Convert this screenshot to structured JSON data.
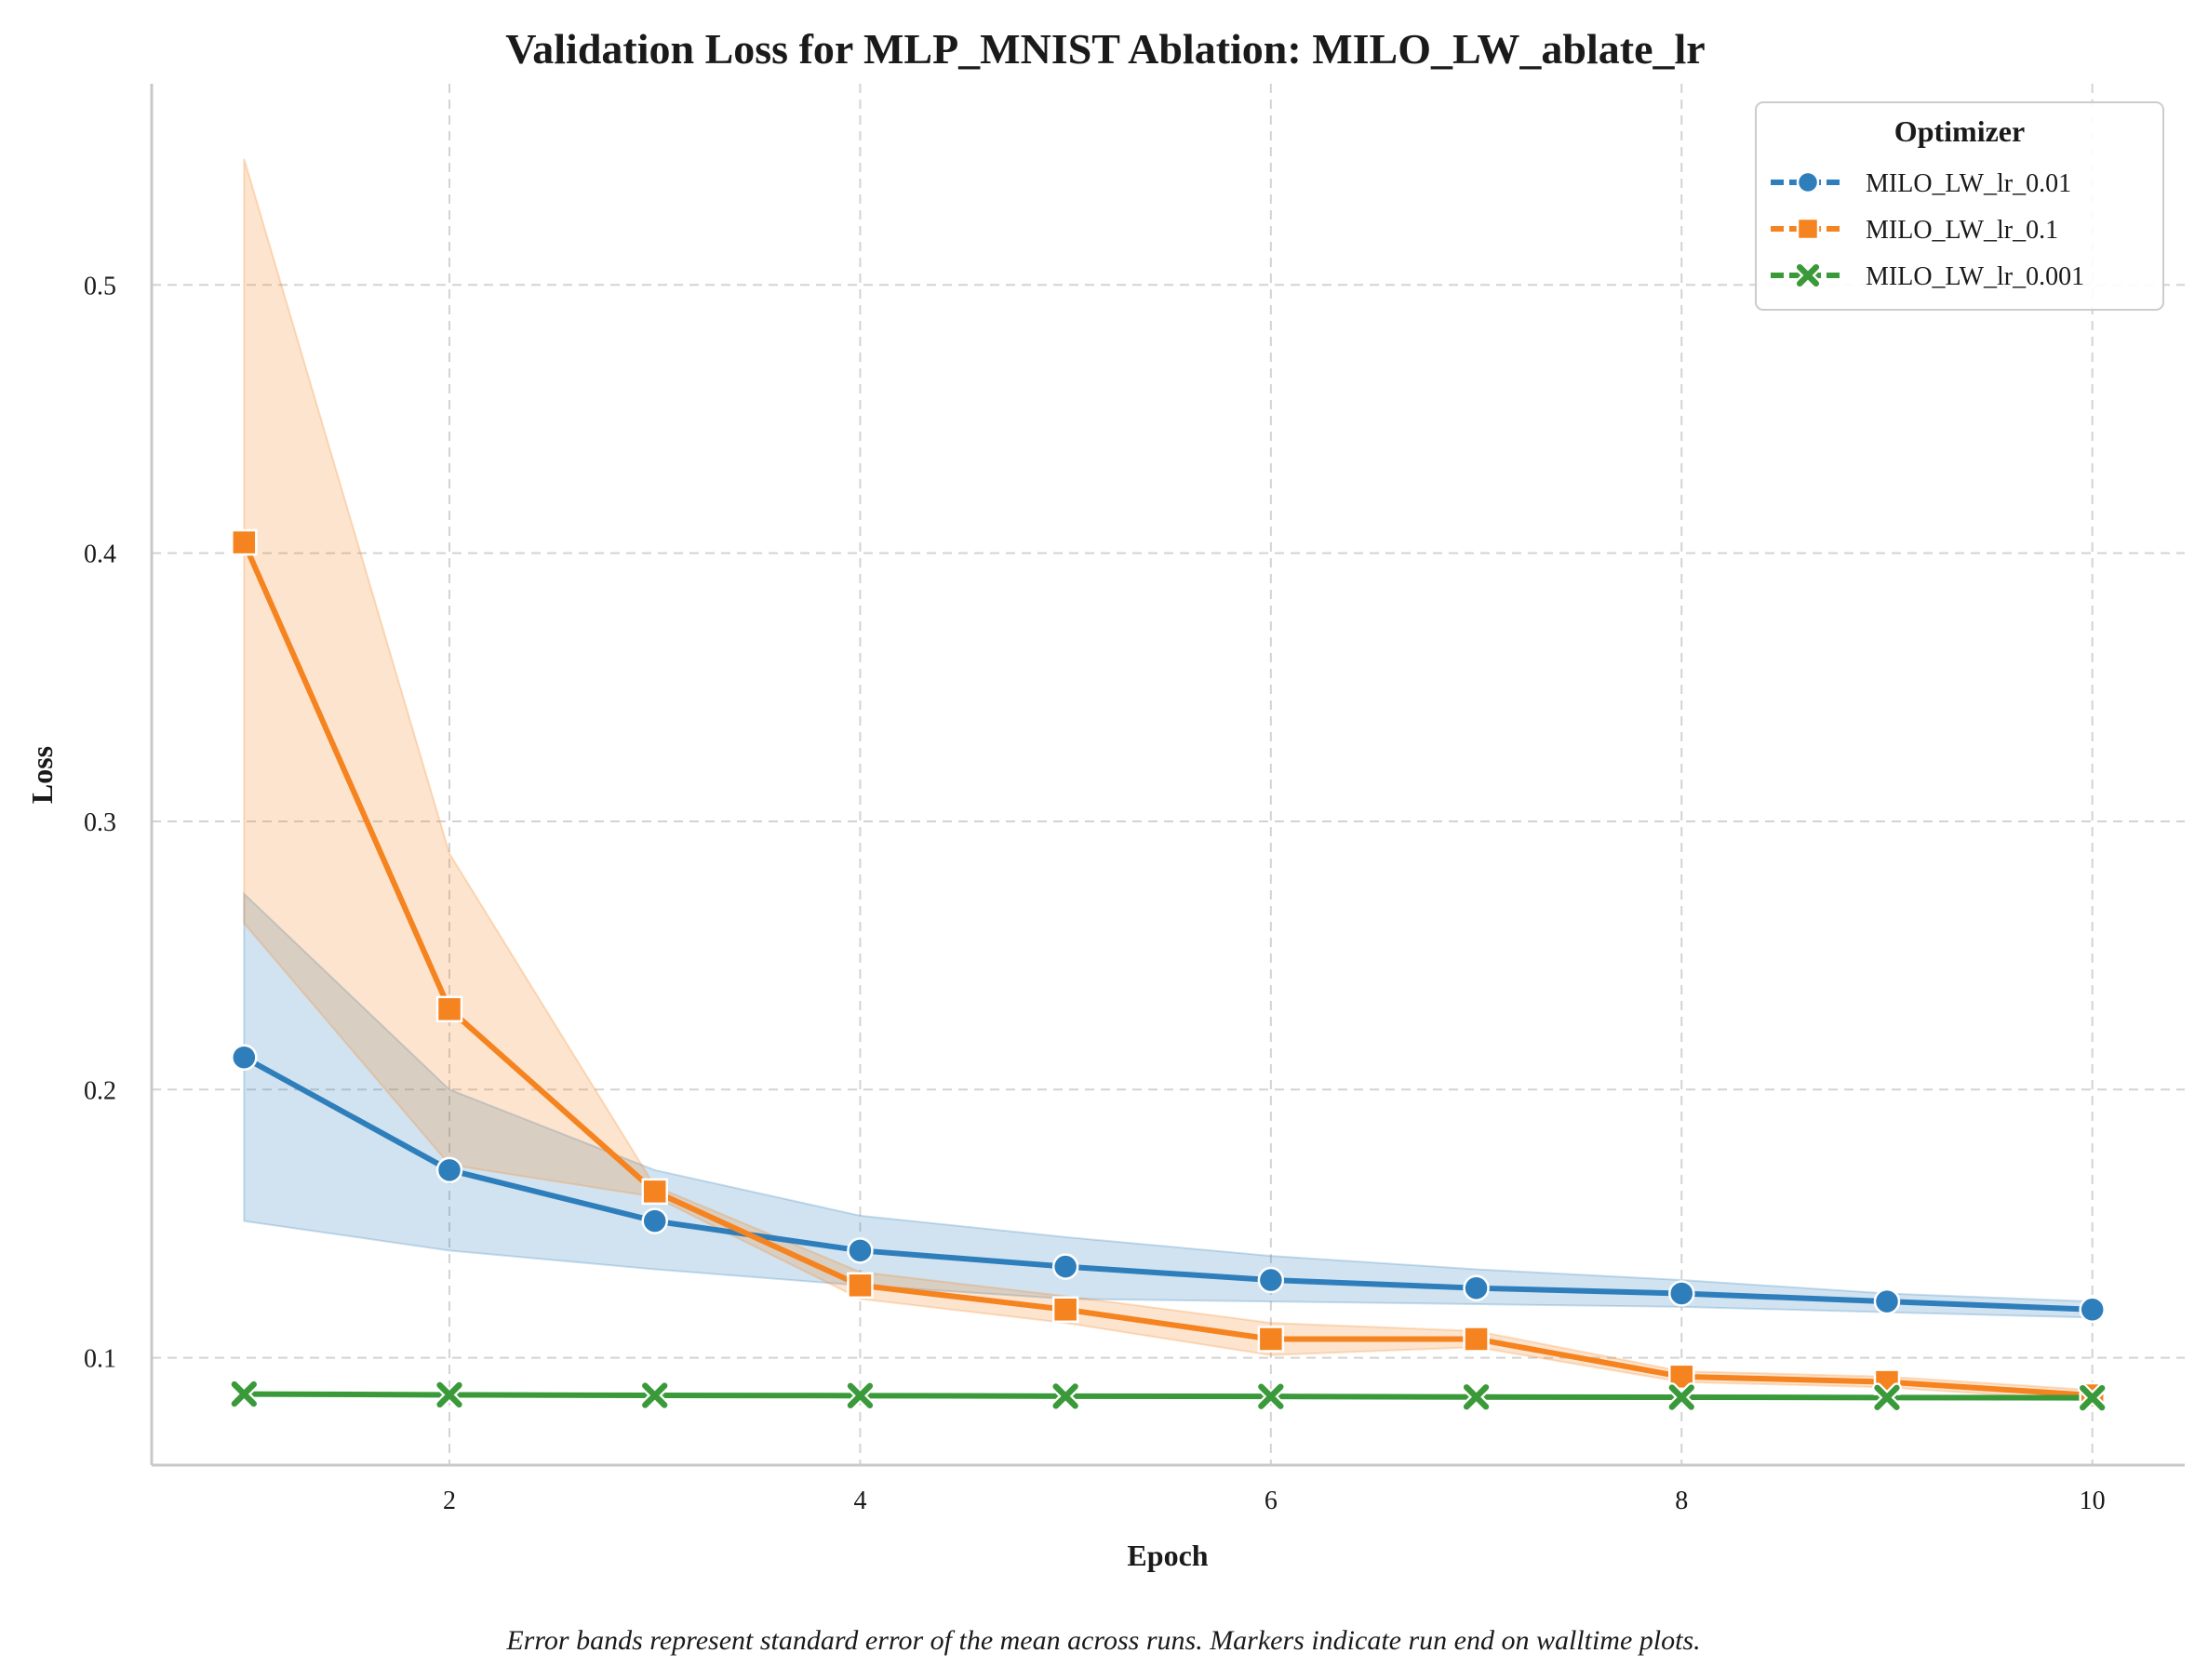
{
  "chart_data": {
    "type": "line",
    "title": "Validation Loss for MLP_MNIST Ablation: MILO_LW_ablate_lr",
    "xlabel": "Epoch",
    "ylabel": "Loss",
    "xlim": [
      0.55,
      10.45
    ],
    "ylim": [
      0.06,
      0.575
    ],
    "xticks": [
      2,
      4,
      6,
      8,
      10
    ],
    "yticks": [
      0.1,
      0.2,
      0.3,
      0.4,
      0.5
    ],
    "grid": true,
    "legend_title": "Optimizer",
    "legend_position": "top-right",
    "x": [
      1,
      2,
      3,
      4,
      5,
      6,
      7,
      8,
      9,
      10
    ],
    "series": [
      {
        "name": "MILO_LW_lr_0.01",
        "color": "#2f7ebc",
        "marker": "circle",
        "values": [
          0.212,
          0.17,
          0.151,
          0.14,
          0.134,
          0.129,
          0.126,
          0.124,
          0.121,
          0.118
        ],
        "band_lower": [
          0.151,
          0.14,
          0.133,
          0.127,
          0.122,
          0.121,
          0.12,
          0.119,
          0.117,
          0.115
        ],
        "band_upper": [
          0.273,
          0.2,
          0.17,
          0.153,
          0.145,
          0.138,
          0.133,
          0.129,
          0.124,
          0.121
        ]
      },
      {
        "name": "MILO_LW_lr_0.1",
        "color": "#f5831f",
        "marker": "square",
        "values": [
          0.404,
          0.23,
          0.162,
          0.127,
          0.118,
          0.107,
          0.107,
          0.093,
          0.091,
          0.086
        ],
        "band_lower": [
          0.262,
          0.172,
          0.16,
          0.122,
          0.113,
          0.101,
          0.104,
          0.091,
          0.089,
          0.084
        ],
        "band_upper": [
          0.547,
          0.288,
          0.164,
          0.132,
          0.123,
          0.113,
          0.11,
          0.095,
          0.093,
          0.088
        ]
      },
      {
        "name": "MILO_LW_lr_0.001",
        "color": "#3a9a3a",
        "marker": "x",
        "values": [
          0.0865,
          0.0862,
          0.086,
          0.0859,
          0.0857,
          0.0856,
          0.0854,
          0.0853,
          0.0852,
          0.0851
        ],
        "band_lower": [
          0.086,
          0.0858,
          0.0856,
          0.0855,
          0.0853,
          0.0852,
          0.085,
          0.0849,
          0.0848,
          0.0847
        ],
        "band_upper": [
          0.087,
          0.0866,
          0.0864,
          0.0863,
          0.0861,
          0.086,
          0.0858,
          0.0857,
          0.0856,
          0.0855
        ]
      }
    ],
    "caption": "Error bands represent standard error of the mean across runs. Markers indicate run end on walltime plots."
  }
}
